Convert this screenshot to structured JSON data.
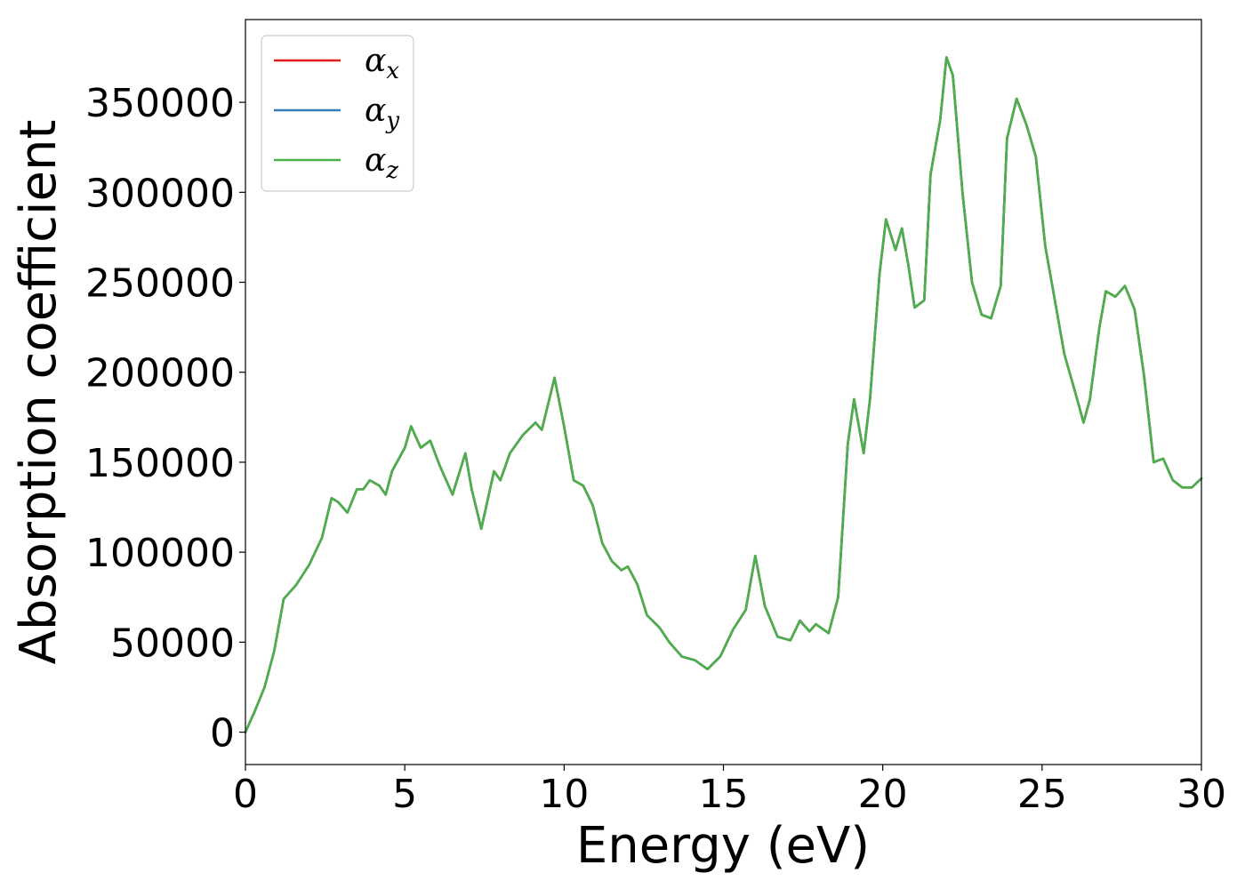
{
  "chart_data": {
    "type": "line",
    "xlabel": "Energy (eV)",
    "ylabel": "Absorption coefficient",
    "xlim": [
      0,
      30
    ],
    "ylim": [
      -18000,
      396000
    ],
    "xticks": [
      0,
      5,
      10,
      15,
      20,
      25,
      30
    ],
    "xtick_labels": [
      "0",
      "5",
      "10",
      "15",
      "20",
      "25",
      "30"
    ],
    "yticks": [
      0,
      50000,
      100000,
      150000,
      200000,
      250000,
      300000,
      350000
    ],
    "ytick_labels": [
      "0",
      "50000",
      "100000",
      "150000",
      "200000",
      "250000",
      "300000",
      "350000"
    ],
    "grid": false,
    "legend_position": "top-left",
    "x": [
      0,
      0.3,
      0.6,
      0.9,
      1.2,
      1.6,
      2.0,
      2.4,
      2.7,
      2.9,
      3.2,
      3.5,
      3.7,
      3.9,
      4.2,
      4.4,
      4.6,
      5.0,
      5.2,
      5.5,
      5.8,
      6.1,
      6.5,
      6.9,
      7.1,
      7.4,
      7.8,
      8.0,
      8.3,
      8.7,
      9.1,
      9.3,
      9.7,
      10.0,
      10.3,
      10.6,
      10.9,
      11.2,
      11.5,
      11.8,
      12.0,
      12.3,
      12.6,
      13.0,
      13.3,
      13.7,
      14.1,
      14.5,
      14.9,
      15.3,
      15.7,
      16.0,
      16.3,
      16.7,
      17.1,
      17.4,
      17.7,
      17.9,
      18.3,
      18.6,
      18.9,
      19.1,
      19.4,
      19.6,
      19.9,
      20.1,
      20.4,
      20.6,
      20.8,
      21.0,
      21.3,
      21.5,
      21.8,
      22.0,
      22.2,
      22.5,
      22.8,
      23.1,
      23.4,
      23.7,
      23.9,
      24.2,
      24.5,
      24.8,
      25.1,
      25.4,
      25.7,
      26.1,
      26.3,
      26.5,
      26.8,
      27.0,
      27.3,
      27.6,
      27.9,
      28.2,
      28.5,
      28.8,
      29.1,
      29.4,
      29.7,
      30.0
    ],
    "series": [
      {
        "name": "α_x",
        "color": "#e41a1c",
        "values": [
          0,
          12000,
          25000,
          45000,
          74000,
          82000,
          93000,
          108000,
          130000,
          128000,
          122000,
          135000,
          135000,
          140000,
          137000,
          132000,
          145000,
          158000,
          170000,
          158000,
          162000,
          148000,
          132000,
          155000,
          135000,
          113000,
          145000,
          140000,
          155000,
          165000,
          172000,
          168000,
          197000,
          170000,
          140000,
          137000,
          126000,
          105000,
          95000,
          90000,
          92000,
          82000,
          65000,
          58000,
          50000,
          42000,
          40000,
          35000,
          42000,
          57000,
          68000,
          98000,
          70000,
          53000,
          51000,
          62000,
          56000,
          60000,
          55000,
          75000,
          160000,
          185000,
          155000,
          185000,
          255000,
          285000,
          268000,
          280000,
          260000,
          236000,
          240000,
          310000,
          340000,
          375000,
          365000,
          300000,
          250000,
          232000,
          230000,
          248000,
          330000,
          352000,
          338000,
          320000,
          270000,
          240000,
          210000,
          185000,
          172000,
          185000,
          225000,
          245000,
          242000,
          248000,
          235000,
          198000,
          150000,
          152000,
          140000,
          136000,
          136000,
          141000
        ]
      },
      {
        "name": "α_y",
        "color": "#377eb8",
        "values": [
          0,
          12000,
          25000,
          45000,
          74000,
          82000,
          93000,
          108000,
          130000,
          128000,
          122000,
          135000,
          135000,
          140000,
          137000,
          132000,
          145000,
          158000,
          170000,
          158000,
          162000,
          148000,
          132000,
          155000,
          135000,
          113000,
          145000,
          140000,
          155000,
          165000,
          172000,
          168000,
          197000,
          170000,
          140000,
          137000,
          126000,
          105000,
          95000,
          90000,
          92000,
          82000,
          65000,
          58000,
          50000,
          42000,
          40000,
          35000,
          42000,
          57000,
          68000,
          98000,
          70000,
          53000,
          51000,
          62000,
          56000,
          60000,
          55000,
          75000,
          160000,
          185000,
          155000,
          185000,
          255000,
          285000,
          268000,
          280000,
          260000,
          236000,
          240000,
          310000,
          340000,
          375000,
          365000,
          300000,
          250000,
          232000,
          230000,
          248000,
          330000,
          352000,
          338000,
          320000,
          270000,
          240000,
          210000,
          185000,
          172000,
          185000,
          225000,
          245000,
          242000,
          248000,
          235000,
          198000,
          150000,
          152000,
          140000,
          136000,
          136000,
          141000
        ]
      },
      {
        "name": "α_z",
        "color": "#4daf4a",
        "values": [
          0,
          12000,
          25000,
          45000,
          74000,
          82000,
          93000,
          108000,
          130000,
          128000,
          122000,
          135000,
          135000,
          140000,
          137000,
          132000,
          145000,
          158000,
          170000,
          158000,
          162000,
          148000,
          132000,
          155000,
          135000,
          113000,
          145000,
          140000,
          155000,
          165000,
          172000,
          168000,
          197000,
          170000,
          140000,
          137000,
          126000,
          105000,
          95000,
          90000,
          92000,
          82000,
          65000,
          58000,
          50000,
          42000,
          40000,
          35000,
          42000,
          57000,
          68000,
          98000,
          70000,
          53000,
          51000,
          62000,
          56000,
          60000,
          55000,
          75000,
          160000,
          185000,
          155000,
          185000,
          255000,
          285000,
          268000,
          280000,
          260000,
          236000,
          240000,
          310000,
          340000,
          375000,
          365000,
          300000,
          250000,
          232000,
          230000,
          248000,
          330000,
          352000,
          338000,
          320000,
          270000,
          240000,
          210000,
          185000,
          172000,
          185000,
          225000,
          245000,
          242000,
          248000,
          235000,
          198000,
          150000,
          152000,
          140000,
          136000,
          136000,
          141000
        ]
      }
    ],
    "legend": [
      {
        "symbol": "α",
        "subscript": "x",
        "color": "#e41a1c"
      },
      {
        "symbol": "α",
        "subscript": "y",
        "color": "#377eb8"
      },
      {
        "symbol": "α",
        "subscript": "z",
        "color": "#4daf4a"
      }
    ]
  }
}
